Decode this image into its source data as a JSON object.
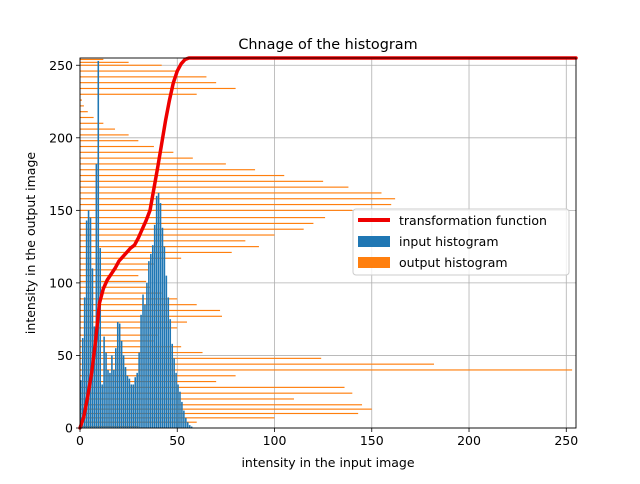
{
  "chart_data": {
    "type": "bar",
    "title": "Chnage of the histogram",
    "xlabel": "intensity in the input image",
    "ylabel": "intensity in the output image",
    "xlim": [
      0,
      255
    ],
    "ylim": [
      0,
      255
    ],
    "xticks": [
      0,
      50,
      100,
      150,
      200,
      250
    ],
    "yticks": [
      0,
      50,
      100,
      150,
      200,
      250
    ],
    "grid": true,
    "legend_position": "center-right",
    "colors": {
      "transformation": "#ee0000",
      "input": "#1f77b4",
      "output": "#ff7f0e",
      "grid": "#b0b0b0"
    },
    "series": [
      {
        "name": "transformation function",
        "type": "line",
        "x": [
          0,
          2,
          4,
          6,
          8,
          10,
          12,
          14,
          16,
          18,
          20,
          22,
          24,
          26,
          28,
          30,
          32,
          34,
          36,
          38,
          40,
          42,
          44,
          46,
          48,
          50,
          52,
          54,
          56,
          58,
          255
        ],
        "y": [
          0,
          8,
          22,
          38,
          60,
          86,
          96,
          102,
          106,
          110,
          115,
          118,
          121,
          124,
          126,
          131,
          137,
          143,
          150,
          165,
          180,
          196,
          212,
          226,
          238,
          246,
          251,
          254,
          255,
          255,
          255
        ]
      },
      {
        "name": "input histogram",
        "type": "bar",
        "x": [
          0,
          1,
          2,
          3,
          4,
          5,
          6,
          7,
          8,
          9,
          10,
          11,
          12,
          13,
          14,
          15,
          16,
          17,
          18,
          19,
          20,
          21,
          22,
          23,
          24,
          25,
          26,
          27,
          28,
          29,
          30,
          31,
          32,
          33,
          34,
          35,
          36,
          37,
          38,
          39,
          40,
          41,
          42,
          43,
          44,
          45,
          46,
          47,
          48,
          49,
          50,
          51,
          52,
          53,
          54,
          55,
          56,
          57
        ],
        "values": [
          33,
          62,
          90,
          143,
          150,
          145,
          110,
          70,
          182,
          253,
          124,
          30,
          63,
          52,
          40,
          38,
          50,
          40,
          55,
          73,
          72,
          60,
          50,
          42,
          36,
          34,
          30,
          30,
          35,
          38,
          52,
          78,
          92,
          85,
          100,
          115,
          120,
          126,
          140,
          160,
          162,
          155,
          138,
          125,
          105,
          90,
          75,
          58,
          48,
          38,
          30,
          25,
          18,
          12,
          7,
          4,
          2,
          1
        ]
      },
      {
        "name": "output histogram",
        "type": "barh",
        "y": [
          1,
          4,
          7,
          10,
          13,
          16,
          20,
          24,
          28,
          32,
          36,
          40,
          44,
          48,
          52,
          56,
          60,
          64,
          69,
          73,
          77,
          81,
          85,
          89,
          93,
          97,
          101,
          105,
          109,
          113,
          117,
          121,
          125,
          129,
          133,
          137,
          141,
          145,
          150,
          154,
          158,
          162,
          166,
          170,
          174,
          178,
          182,
          186,
          190,
          194,
          198,
          202,
          206,
          210,
          214,
          218,
          222,
          226,
          230,
          234,
          238,
          242,
          246,
          250,
          252,
          254
        ],
        "values": [
          30,
          60,
          100,
          143,
          150,
          145,
          110,
          140,
          136,
          70,
          80,
          253,
          182,
          124,
          63,
          52,
          38,
          40,
          50,
          55,
          73,
          72,
          60,
          50,
          42,
          36,
          34,
          30,
          35,
          38,
          52,
          78,
          92,
          85,
          100,
          115,
          120,
          126,
          140,
          160,
          162,
          155,
          138,
          125,
          105,
          90,
          75,
          58,
          48,
          38,
          30,
          25,
          18,
          12,
          7,
          4,
          2,
          1,
          60,
          80,
          70,
          65,
          50,
          42,
          25,
          12
        ]
      }
    ]
  }
}
